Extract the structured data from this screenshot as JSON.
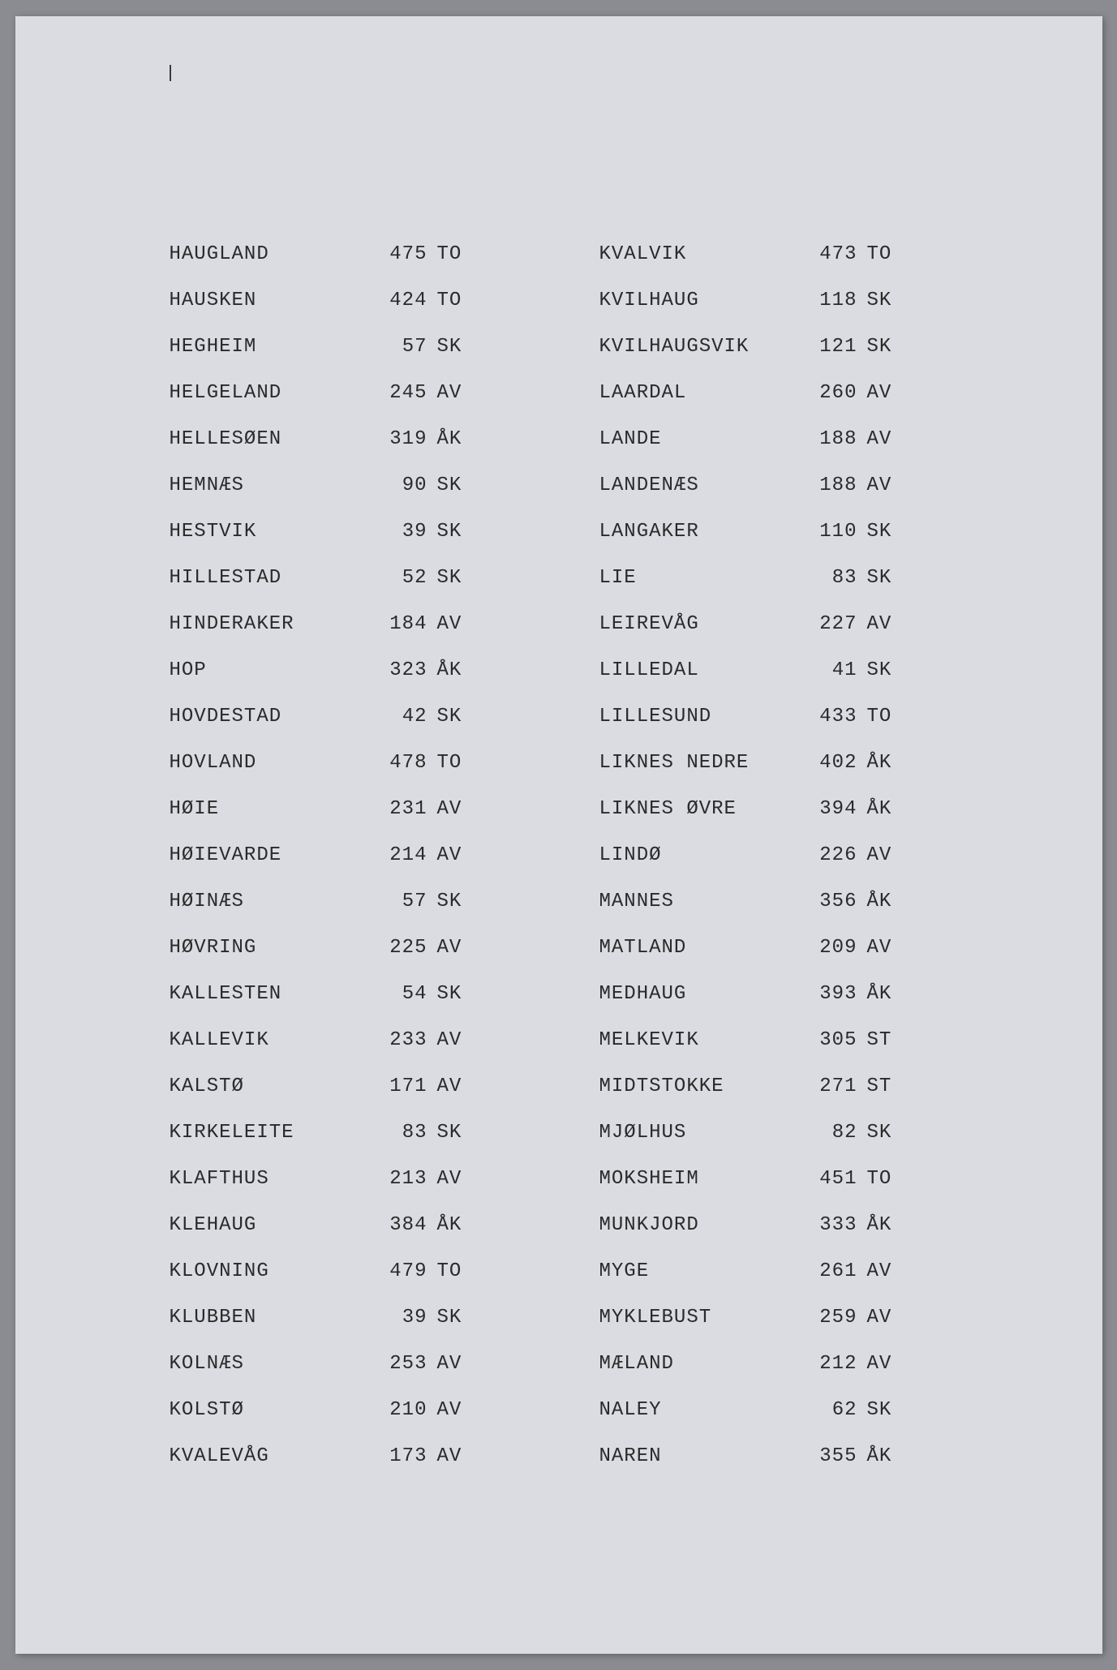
{
  "page": {
    "background_color": "#8a8c92",
    "paper_color": "#dadce2",
    "text_color": "#2a2a2a",
    "font_family": "Courier New",
    "font_size_pt": 18
  },
  "left_column": [
    {
      "name": "HAUGLAND",
      "number": "475",
      "code": "TO"
    },
    {
      "name": "HAUSKEN",
      "number": "424",
      "code": "TO"
    },
    {
      "name": "HEGHEIM",
      "number": "57",
      "code": "SK"
    },
    {
      "name": "HELGELAND",
      "number": "245",
      "code": "AV"
    },
    {
      "name": "HELLESØEN",
      "number": "319",
      "code": "ÅK"
    },
    {
      "name": "HEMNÆS",
      "number": "90",
      "code": "SK"
    },
    {
      "name": "HESTVIK",
      "number": "39",
      "code": "SK"
    },
    {
      "name": "HILLESTAD",
      "number": "52",
      "code": "SK"
    },
    {
      "name": "HINDERAKER",
      "number": "184",
      "code": "AV"
    },
    {
      "name": "HOP",
      "number": "323",
      "code": "ÅK"
    },
    {
      "name": "HOVDESTAD",
      "number": "42",
      "code": "SK"
    },
    {
      "name": "HOVLAND",
      "number": "478",
      "code": "TO"
    },
    {
      "name": "HØIE",
      "number": "231",
      "code": "AV"
    },
    {
      "name": "HØIEVARDE",
      "number": "214",
      "code": "AV"
    },
    {
      "name": "HØINÆS",
      "number": "57",
      "code": "SK"
    },
    {
      "name": "HØVRING",
      "number": "225",
      "code": "AV"
    },
    {
      "name": "KALLESTEN",
      "number": "54",
      "code": "SK"
    },
    {
      "name": "KALLEVIK",
      "number": "233",
      "code": "AV"
    },
    {
      "name": "KALSTØ",
      "number": "171",
      "code": "AV"
    },
    {
      "name": "KIRKELEITE",
      "number": "83",
      "code": "SK"
    },
    {
      "name": "KLAFTHUS",
      "number": "213",
      "code": "AV"
    },
    {
      "name": "KLEHAUG",
      "number": "384",
      "code": "ÅK"
    },
    {
      "name": "KLOVNING",
      "number": "479",
      "code": "TO"
    },
    {
      "name": "KLUBBEN",
      "number": "39",
      "code": "SK"
    },
    {
      "name": "KOLNÆS",
      "number": "253",
      "code": "AV"
    },
    {
      "name": "KOLSTØ",
      "number": "210",
      "code": "AV"
    },
    {
      "name": "KVALEVÅG",
      "number": "173",
      "code": "AV"
    }
  ],
  "right_column": [
    {
      "name": "KVALVIK",
      "number": "473",
      "code": "TO"
    },
    {
      "name": "KVILHAUG",
      "number": "118",
      "code": "SK"
    },
    {
      "name": "KVILHAUGSVIK",
      "number": "121",
      "code": "SK"
    },
    {
      "name": "LAARDAL",
      "number": "260",
      "code": "AV"
    },
    {
      "name": "LANDE",
      "number": "188",
      "code": "AV"
    },
    {
      "name": "LANDENÆS",
      "number": "188",
      "code": "AV"
    },
    {
      "name": "LANGAKER",
      "number": "110",
      "code": "SK"
    },
    {
      "name": "LIE",
      "number": "83",
      "code": "SK"
    },
    {
      "name": "LEIREVÅG",
      "number": "227",
      "code": "AV"
    },
    {
      "name": "LILLEDAL",
      "number": "41",
      "code": "SK"
    },
    {
      "name": "LILLESUND",
      "number": "433",
      "code": "TO"
    },
    {
      "name": "LIKNES NEDRE",
      "number": "402",
      "code": "ÅK"
    },
    {
      "name": "LIKNES ØVRE",
      "number": "394",
      "code": "ÅK"
    },
    {
      "name": "LINDØ",
      "number": "226",
      "code": "AV"
    },
    {
      "name": "MANNES",
      "number": "356",
      "code": "ÅK"
    },
    {
      "name": "MATLAND",
      "number": "209",
      "code": "AV"
    },
    {
      "name": "MEDHAUG",
      "number": "393",
      "code": "ÅK"
    },
    {
      "name": "MELKEVIK",
      "number": "305",
      "code": "ST"
    },
    {
      "name": "MIDTSTOKKE",
      "number": "271",
      "code": "ST"
    },
    {
      "name": "MJØLHUS",
      "number": "82",
      "code": "SK"
    },
    {
      "name": "MOKSHEIM",
      "number": "451",
      "code": "TO"
    },
    {
      "name": "MUNKJORD",
      "number": "333",
      "code": "ÅK"
    },
    {
      "name": "MYGE",
      "number": "261",
      "code": "AV"
    },
    {
      "name": "MYKLEBUST",
      "number": "259",
      "code": "AV"
    },
    {
      "name": "MÆLAND",
      "number": "212",
      "code": "AV"
    },
    {
      "name": "NALEY",
      "number": "62",
      "code": "SK"
    },
    {
      "name": "NAREN",
      "number": "355",
      "code": "ÅK"
    }
  ]
}
